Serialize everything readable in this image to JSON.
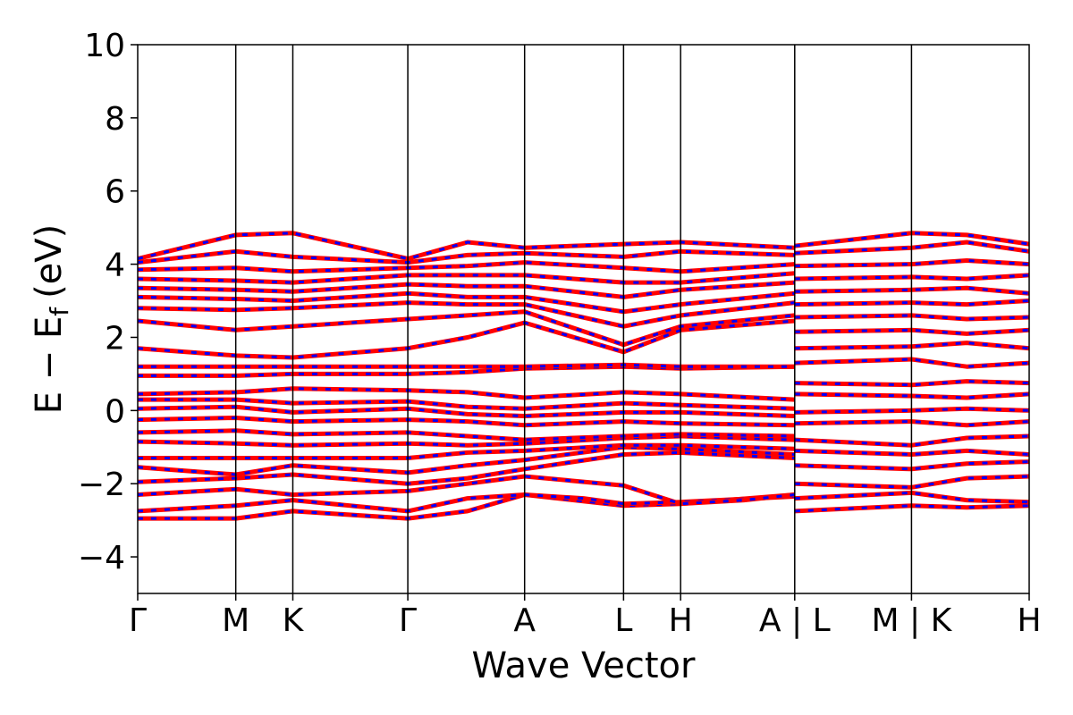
{
  "chart_data": {
    "type": "line",
    "title": "",
    "xlabel": "Wave Vector",
    "ylabel": "E − E",
    "ylabel_subscript": "f",
    "ylabel_unit": "(eV)",
    "ylim": [
      -5,
      10
    ],
    "yticks": [
      -4,
      -2,
      0,
      2,
      4,
      6,
      8,
      10
    ],
    "ytick_labels": [
      "−4",
      "−2",
      "0",
      "2",
      "4",
      "6",
      "8",
      "10"
    ],
    "grid": false,
    "legend": "none",
    "line_style": "red solid overlaid with blue dashed",
    "colors": {
      "solid": "#ff0000",
      "dashed": "#0000ff"
    },
    "kpath": [
      {
        "label": "Γ",
        "x": 0.0
      },
      {
        "label": "M",
        "x": 0.11
      },
      {
        "label": "K",
        "x": 0.174
      },
      {
        "label": "Γ",
        "x": 0.303
      },
      {
        "label": "A",
        "x": 0.434
      },
      {
        "label": "L",
        "x": 0.545
      },
      {
        "label": "H",
        "x": 0.609
      },
      {
        "label": "A | L",
        "x": 0.737
      },
      {
        "label": "M | K",
        "x": 0.868
      },
      {
        "label": "H",
        "x": 1.0
      }
    ],
    "bands": [
      [
        [
          0,
          -2.95
        ],
        [
          0.11,
          -2.95
        ],
        [
          0.174,
          -2.75
        ],
        [
          0.303,
          -2.95
        ],
        [
          0.37,
          -2.75
        ],
        [
          0.434,
          -2.3
        ],
        [
          0.545,
          -2.6
        ],
        [
          0.609,
          -2.55
        ],
        [
          0.737,
          -2.3
        ]
      ],
      [
        [
          0,
          -2.75
        ],
        [
          0.11,
          -2.6
        ],
        [
          0.174,
          -2.45
        ],
        [
          0.303,
          -2.75
        ],
        [
          0.37,
          -2.4
        ],
        [
          0.434,
          -2.3
        ],
        [
          0.5,
          -2.4
        ],
        [
          0.545,
          -2.55
        ],
        [
          0.609,
          -2.5
        ],
        [
          0.737,
          -2.35
        ]
      ],
      [
        [
          0,
          -2.3
        ],
        [
          0.11,
          -2.15
        ],
        [
          0.174,
          -2.3
        ],
        [
          0.303,
          -2.2
        ],
        [
          0.37,
          -2.0
        ],
        [
          0.434,
          -1.8
        ],
        [
          0.545,
          -2.05
        ],
        [
          0.609,
          -2.55
        ],
        [
          0.68,
          -2.45
        ],
        [
          0.737,
          -2.3
        ]
      ],
      [
        [
          0,
          -1.95
        ],
        [
          0.11,
          -1.85
        ],
        [
          0.174,
          -1.75
        ],
        [
          0.303,
          -2.0
        ],
        [
          0.37,
          -1.85
        ],
        [
          0.434,
          -1.6
        ],
        [
          0.545,
          -1.2
        ],
        [
          0.609,
          -1.15
        ],
        [
          0.737,
          -1.3
        ]
      ],
      [
        [
          0,
          -1.55
        ],
        [
          0.11,
          -1.75
        ],
        [
          0.174,
          -1.5
        ],
        [
          0.303,
          -1.7
        ],
        [
          0.37,
          -1.5
        ],
        [
          0.434,
          -1.35
        ],
        [
          0.545,
          -1.0
        ],
        [
          0.609,
          -1.05
        ],
        [
          0.737,
          -1.2
        ]
      ],
      [
        [
          0,
          -1.3
        ],
        [
          0.11,
          -1.3
        ],
        [
          0.174,
          -1.3
        ],
        [
          0.303,
          -1.3
        ],
        [
          0.37,
          -1.15
        ],
        [
          0.434,
          -1.1
        ],
        [
          0.545,
          -0.95
        ],
        [
          0.609,
          -0.95
        ],
        [
          0.737,
          -1.05
        ]
      ],
      [
        [
          0,
          -0.85
        ],
        [
          0.11,
          -0.9
        ],
        [
          0.174,
          -0.95
        ],
        [
          0.303,
          -0.9
        ],
        [
          0.37,
          -0.95
        ],
        [
          0.434,
          -0.9
        ],
        [
          0.545,
          -0.75
        ],
        [
          0.609,
          -0.7
        ],
        [
          0.737,
          -0.8
        ]
      ],
      [
        [
          0,
          -0.6
        ],
        [
          0.11,
          -0.55
        ],
        [
          0.174,
          -0.65
        ],
        [
          0.303,
          -0.6
        ],
        [
          0.37,
          -0.7
        ],
        [
          0.434,
          -0.8
        ],
        [
          0.545,
          -0.7
        ],
        [
          0.609,
          -0.65
        ],
        [
          0.737,
          -0.7
        ]
      ],
      [
        [
          0,
          -0.25
        ],
        [
          0.11,
          -0.2
        ],
        [
          0.174,
          -0.3
        ],
        [
          0.303,
          -0.25
        ],
        [
          0.37,
          -0.3
        ],
        [
          0.434,
          -0.4
        ],
        [
          0.545,
          -0.3
        ],
        [
          0.609,
          -0.35
        ],
        [
          0.737,
          -0.4
        ]
      ],
      [
        [
          0,
          0.05
        ],
        [
          0.11,
          0.1
        ],
        [
          0.174,
          -0.05
        ],
        [
          0.303,
          0.05
        ],
        [
          0.37,
          -0.1
        ],
        [
          0.434,
          -0.15
        ],
        [
          0.545,
          -0.05
        ],
        [
          0.609,
          -0.05
        ],
        [
          0.737,
          -0.15
        ]
      ],
      [
        [
          0,
          0.3
        ],
        [
          0.11,
          0.3
        ],
        [
          0.174,
          0.2
        ],
        [
          0.303,
          0.25
        ],
        [
          0.37,
          0.1
        ],
        [
          0.434,
          0.05
        ],
        [
          0.545,
          0.2
        ],
        [
          0.609,
          0.15
        ],
        [
          0.737,
          0.05
        ]
      ],
      [
        [
          0,
          0.45
        ],
        [
          0.11,
          0.5
        ],
        [
          0.174,
          0.6
        ],
        [
          0.303,
          0.55
        ],
        [
          0.37,
          0.5
        ],
        [
          0.434,
          0.35
        ],
        [
          0.545,
          0.5
        ],
        [
          0.609,
          0.45
        ],
        [
          0.737,
          0.3
        ]
      ],
      [
        [
          0,
          0.95
        ],
        [
          0.11,
          0.95
        ],
        [
          0.174,
          1.0
        ],
        [
          0.303,
          1.0
        ],
        [
          0.37,
          1.05
        ],
        [
          0.434,
          1.15
        ],
        [
          0.545,
          1.2
        ],
        [
          0.609,
          1.15
        ],
        [
          0.737,
          1.2
        ]
      ],
      [
        [
          0,
          1.2
        ],
        [
          0.11,
          1.2
        ],
        [
          0.174,
          1.2
        ],
        [
          0.303,
          1.2
        ],
        [
          0.37,
          1.2
        ],
        [
          0.434,
          1.2
        ],
        [
          0.545,
          1.25
        ],
        [
          0.609,
          1.2
        ],
        [
          0.737,
          1.2
        ]
      ],
      [
        [
          0,
          1.7
        ],
        [
          0.11,
          1.5
        ],
        [
          0.174,
          1.45
        ],
        [
          0.303,
          1.7
        ],
        [
          0.37,
          2.0
        ],
        [
          0.434,
          2.4
        ],
        [
          0.545,
          1.6
        ],
        [
          0.609,
          2.2
        ],
        [
          0.737,
          2.45
        ]
      ],
      [
        [
          0,
          2.45
        ],
        [
          0.11,
          2.2
        ],
        [
          0.174,
          2.3
        ],
        [
          0.303,
          2.5
        ],
        [
          0.37,
          2.6
        ],
        [
          0.434,
          2.7
        ],
        [
          0.545,
          1.8
        ],
        [
          0.609,
          2.3
        ],
        [
          0.737,
          2.6
        ]
      ],
      [
        [
          0,
          2.8
        ],
        [
          0.11,
          2.75
        ],
        [
          0.174,
          2.8
        ],
        [
          0.303,
          2.95
        ],
        [
          0.37,
          2.9
        ],
        [
          0.434,
          2.9
        ],
        [
          0.545,
          2.3
        ],
        [
          0.609,
          2.6
        ],
        [
          0.737,
          2.95
        ]
      ],
      [
        [
          0,
          3.1
        ],
        [
          0.11,
          3.05
        ],
        [
          0.174,
          3.0
        ],
        [
          0.303,
          3.2
        ],
        [
          0.37,
          3.1
        ],
        [
          0.434,
          3.1
        ],
        [
          0.545,
          2.7
        ],
        [
          0.609,
          2.9
        ],
        [
          0.737,
          3.2
        ]
      ],
      [
        [
          0,
          3.35
        ],
        [
          0.11,
          3.3
        ],
        [
          0.174,
          3.25
        ],
        [
          0.303,
          3.45
        ],
        [
          0.37,
          3.4
        ],
        [
          0.434,
          3.4
        ],
        [
          0.545,
          3.1
        ],
        [
          0.609,
          3.3
        ],
        [
          0.737,
          3.5
        ]
      ],
      [
        [
          0,
          3.6
        ],
        [
          0.11,
          3.55
        ],
        [
          0.174,
          3.5
        ],
        [
          0.303,
          3.7
        ],
        [
          0.37,
          3.7
        ],
        [
          0.434,
          3.7
        ],
        [
          0.545,
          3.5
        ],
        [
          0.609,
          3.5
        ],
        [
          0.737,
          3.75
        ]
      ],
      [
        [
          0,
          3.85
        ],
        [
          0.11,
          3.9
        ],
        [
          0.174,
          3.8
        ],
        [
          0.303,
          3.9
        ],
        [
          0.37,
          3.95
        ],
        [
          0.434,
          4.05
        ],
        [
          0.545,
          3.9
        ],
        [
          0.609,
          3.8
        ],
        [
          0.737,
          4.0
        ]
      ],
      [
        [
          0,
          4.05
        ],
        [
          0.11,
          4.35
        ],
        [
          0.174,
          4.2
        ],
        [
          0.303,
          4.05
        ],
        [
          0.37,
          4.25
        ],
        [
          0.434,
          4.3
        ],
        [
          0.545,
          4.2
        ],
        [
          0.609,
          4.35
        ],
        [
          0.737,
          4.25
        ]
      ],
      [
        [
          0,
          4.15
        ],
        [
          0.11,
          4.8
        ],
        [
          0.174,
          4.85
        ],
        [
          0.303,
          4.15
        ],
        [
          0.37,
          4.6
        ],
        [
          0.434,
          4.45
        ],
        [
          0.545,
          4.55
        ],
        [
          0.609,
          4.6
        ],
        [
          0.737,
          4.45
        ]
      ],
      [
        [
          0.737,
          -2.75
        ],
        [
          0.868,
          -2.6
        ],
        [
          0.93,
          -2.65
        ],
        [
          1.0,
          -2.6
        ]
      ],
      [
        [
          0.737,
          -2.4
        ],
        [
          0.868,
          -2.25
        ],
        [
          0.93,
          -2.45
        ],
        [
          1.0,
          -2.5
        ]
      ],
      [
        [
          0.737,
          -2.0
        ],
        [
          0.868,
          -2.1
        ],
        [
          0.93,
          -1.85
        ],
        [
          1.0,
          -1.8
        ]
      ],
      [
        [
          0.737,
          -1.5
        ],
        [
          0.868,
          -1.6
        ],
        [
          0.93,
          -1.45
        ],
        [
          1.0,
          -1.4
        ]
      ],
      [
        [
          0.737,
          -1.1
        ],
        [
          0.868,
          -1.2
        ],
        [
          0.93,
          -1.1
        ],
        [
          1.0,
          -1.2
        ]
      ],
      [
        [
          0.737,
          -0.8
        ],
        [
          0.868,
          -0.95
        ],
        [
          0.93,
          -0.75
        ],
        [
          1.0,
          -0.7
        ]
      ],
      [
        [
          0.737,
          -0.35
        ],
        [
          0.868,
          -0.3
        ],
        [
          0.93,
          -0.4
        ],
        [
          1.0,
          -0.3
        ]
      ],
      [
        [
          0.737,
          -0.05
        ],
        [
          0.868,
          0.0
        ],
        [
          0.93,
          0.05
        ],
        [
          1.0,
          0.0
        ]
      ],
      [
        [
          0.737,
          0.45
        ],
        [
          0.868,
          0.4
        ],
        [
          0.93,
          0.35
        ],
        [
          1.0,
          0.45
        ]
      ],
      [
        [
          0.737,
          0.75
        ],
        [
          0.868,
          0.7
        ],
        [
          0.93,
          0.8
        ],
        [
          1.0,
          0.75
        ]
      ],
      [
        [
          0.737,
          1.3
        ],
        [
          0.868,
          1.4
        ],
        [
          0.93,
          1.2
        ],
        [
          1.0,
          1.3
        ]
      ],
      [
        [
          0.737,
          1.7
        ],
        [
          0.868,
          1.75
        ],
        [
          0.93,
          1.85
        ],
        [
          1.0,
          1.7
        ]
      ],
      [
        [
          0.737,
          2.15
        ],
        [
          0.868,
          2.2
        ],
        [
          0.93,
          2.1
        ],
        [
          1.0,
          2.2
        ]
      ],
      [
        [
          0.737,
          2.55
        ],
        [
          0.868,
          2.6
        ],
        [
          0.93,
          2.5
        ],
        [
          1.0,
          2.55
        ]
      ],
      [
        [
          0.737,
          2.9
        ],
        [
          0.868,
          2.95
        ],
        [
          0.93,
          2.9
        ],
        [
          1.0,
          3.0
        ]
      ],
      [
        [
          0.737,
          3.25
        ],
        [
          0.868,
          3.3
        ],
        [
          0.93,
          3.35
        ],
        [
          1.0,
          3.2
        ]
      ],
      [
        [
          0.737,
          3.6
        ],
        [
          0.868,
          3.65
        ],
        [
          0.93,
          3.6
        ],
        [
          1.0,
          3.7
        ]
      ],
      [
        [
          0.737,
          3.95
        ],
        [
          0.868,
          4.0
        ],
        [
          0.93,
          4.1
        ],
        [
          1.0,
          4.0
        ]
      ],
      [
        [
          0.737,
          4.3
        ],
        [
          0.868,
          4.45
        ],
        [
          0.93,
          4.6
        ],
        [
          1.0,
          4.35
        ]
      ],
      [
        [
          0.737,
          4.5
        ],
        [
          0.868,
          4.85
        ],
        [
          0.93,
          4.8
        ],
        [
          1.0,
          4.55
        ]
      ]
    ]
  }
}
